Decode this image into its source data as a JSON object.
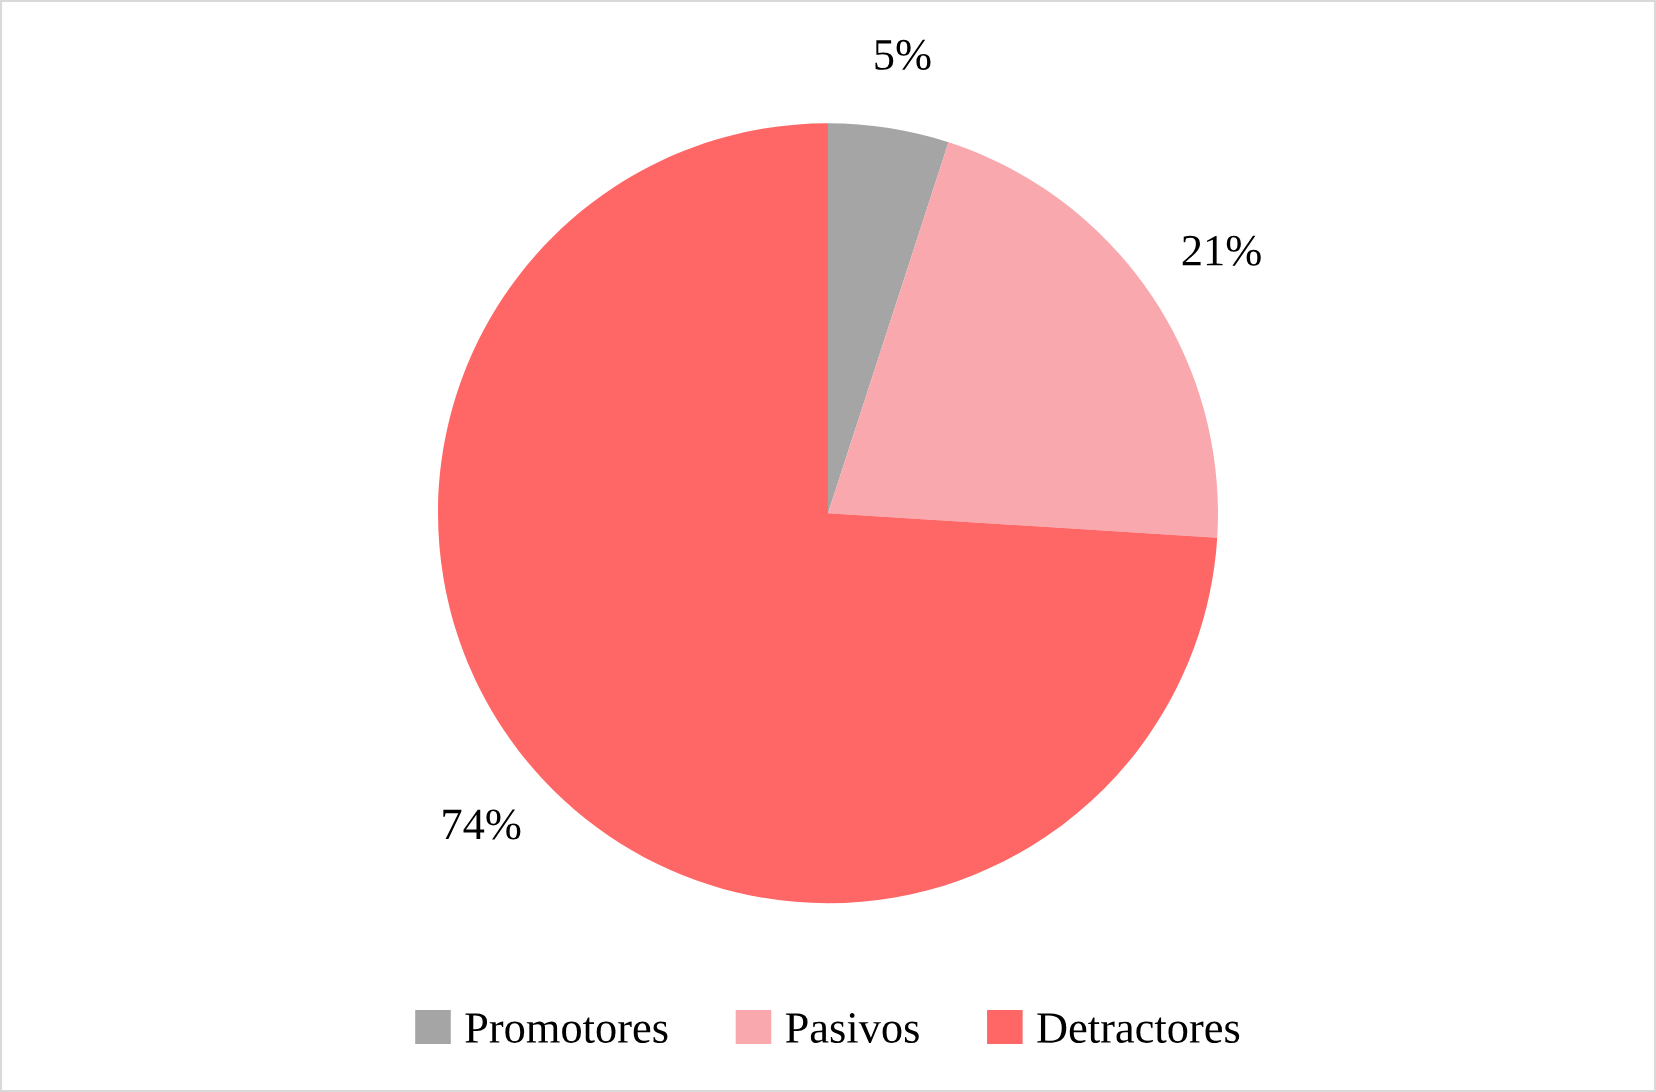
{
  "chart_data": {
    "type": "pie",
    "categories": [
      "Promotores",
      "Pasivos",
      "Detractores"
    ],
    "values": [
      5,
      21,
      74
    ],
    "colors": [
      "#a5a5a5",
      "#f9a8ad",
      "#ff6666"
    ],
    "value_labels": [
      "5%",
      "21%",
      "74%"
    ],
    "legend": "bottom"
  }
}
